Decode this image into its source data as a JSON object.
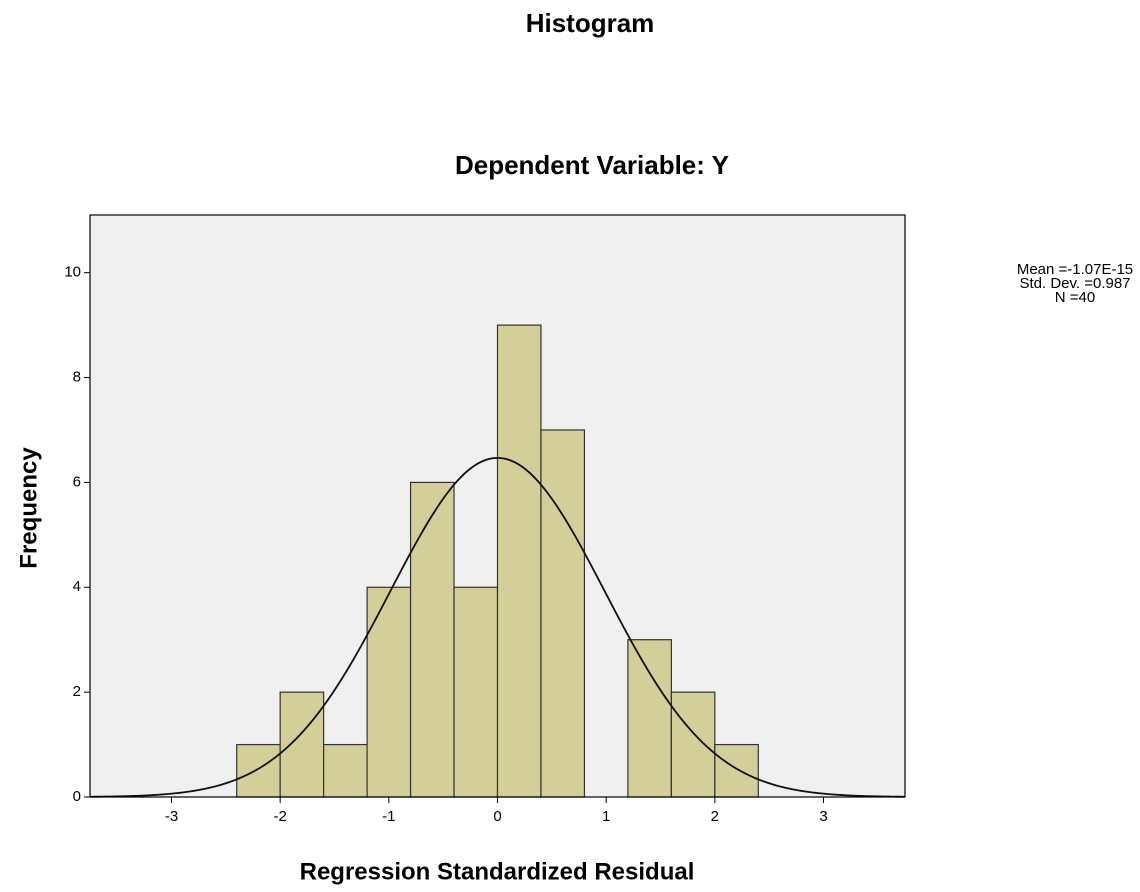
{
  "chart_data": {
    "type": "histogram",
    "title": "Histogram",
    "subtitle": "Dependent Variable: Y",
    "x_label": "Regression Standardized Residual",
    "y_label": "Frequency",
    "bins": [
      -2.4,
      -2.0,
      -1.6,
      -1.2,
      -0.8,
      -0.4,
      0,
      0.4,
      0.8,
      1.2,
      1.6,
      2.0,
      2.4
    ],
    "values": [
      1,
      2,
      1,
      4,
      6,
      4,
      9,
      7,
      0,
      3,
      2,
      1
    ],
    "color": "#d4cf98",
    "xlim": [
      -3.75,
      3.75
    ],
    "xticks": [
      -3,
      -2,
      -1,
      0,
      1,
      2,
      3
    ],
    "ylim": [
      0,
      11.1
    ],
    "yticks": [
      0,
      2,
      4,
      6,
      8,
      10
    ],
    "stats": [
      {
        "value": -1.07e-15,
        "label": "Mean =-1.07E-15"
      },
      {
        "value": 0.987,
        "label": "Std. Dev. =0.987"
      },
      {
        "value": 40,
        "label": "N =40"
      }
    ]
  }
}
